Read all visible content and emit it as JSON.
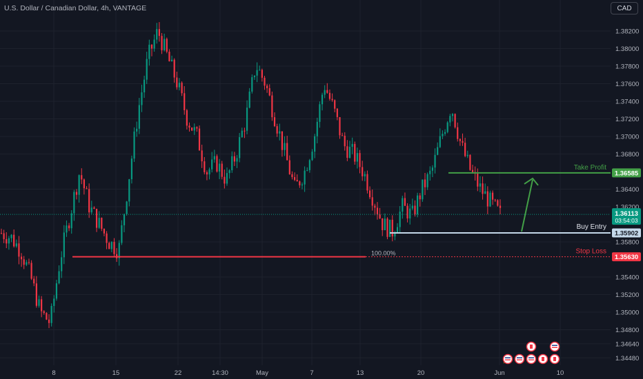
{
  "symbol": {
    "title": "U.S. Dollar / Canadian Dollar, 4h, VANTAGE"
  },
  "currency_button": "CAD",
  "price_axis": {
    "ticks": [
      "1.38200",
      "1.38000",
      "1.37800",
      "1.37600",
      "1.37400",
      "1.37200",
      "1.37000",
      "1.36800",
      "1.36400",
      "1.36200",
      "1.35800",
      "1.35400",
      "1.35200",
      "1.35000",
      "1.34800",
      "1.34640",
      "1.34480"
    ]
  },
  "time_axis": {
    "ticks": [
      "8",
      "15",
      "22",
      "14:30",
      "May",
      "7",
      "13",
      "20",
      "Jun",
      "10"
    ]
  },
  "levels": {
    "take_profit": {
      "label": "Take Profit",
      "price": "1.36585",
      "color": "#43a047"
    },
    "buy_entry": {
      "label": "Buy Entry",
      "price": "1.35902",
      "color": "#c5d9ea"
    },
    "stop_loss": {
      "label": "Stop Loss",
      "price": "1.35630",
      "color": "#f23645"
    },
    "fib_label": "100.00%"
  },
  "current_price": {
    "price": "1.36113",
    "countdown": "03:54:03",
    "color": "#089981"
  },
  "colors": {
    "up": "#089981",
    "down": "#f23645",
    "background": "#131722",
    "grid": "#1e222d",
    "axis_text": "#b2b5be"
  },
  "chart_data": {
    "type": "candlestick",
    "timeframe": "4h",
    "ylim": [
      1.344,
      1.384
    ],
    "levels": {
      "take_profit": 1.36585,
      "buy_entry": 1.35902,
      "stop_loss": 1.3563,
      "current": 1.36113
    },
    "close_path_approx": [
      [
        1.359,
        1.3585
      ],
      [
        1.3585,
        1.357
      ],
      [
        1.357,
        1.354
      ],
      [
        1.354,
        1.35
      ],
      [
        1.35,
        1.3488
      ],
      [
        1.3488,
        1.356
      ],
      [
        1.356,
        1.361
      ],
      [
        1.361,
        1.366
      ],
      [
        1.366,
        1.362
      ],
      [
        1.362,
        1.36
      ],
      [
        1.36,
        1.358
      ],
      [
        1.358,
        1.357
      ],
      [
        1.357,
        1.365
      ],
      [
        1.365,
        1.373
      ],
      [
        1.373,
        1.379
      ],
      [
        1.379,
        1.382
      ],
      [
        1.382,
        1.379
      ],
      [
        1.379,
        1.376
      ],
      [
        1.376,
        1.372
      ],
      [
        1.372,
        1.37
      ],
      [
        1.37,
        1.366
      ],
      [
        1.366,
        1.367
      ],
      [
        1.367,
        1.365
      ],
      [
        1.365,
        1.368
      ],
      [
        1.368,
        1.372
      ],
      [
        1.372,
        1.3782
      ],
      [
        1.3782,
        1.376
      ],
      [
        1.376,
        1.372
      ],
      [
        1.372,
        1.368
      ],
      [
        1.368,
        1.364
      ],
      [
        1.364,
        1.366
      ],
      [
        1.366,
        1.37
      ],
      [
        1.37,
        1.376
      ],
      [
        1.376,
        1.373
      ],
      [
        1.373,
        1.369
      ],
      [
        1.369,
        1.368
      ],
      [
        1.368,
        1.366
      ],
      [
        1.366,
        1.363
      ],
      [
        1.363,
        1.36
      ],
      [
        1.36,
        1.3592
      ],
      [
        1.3592,
        1.362
      ],
      [
        1.362,
        1.361
      ],
      [
        1.361,
        1.364
      ],
      [
        1.364,
        1.366
      ],
      [
        1.366,
        1.37
      ],
      [
        1.37,
        1.3735
      ],
      [
        1.3735,
        1.369
      ],
      [
        1.369,
        1.366
      ],
      [
        1.366,
        1.364
      ],
      [
        1.364,
        1.3625
      ],
      [
        1.3625,
        1.3611
      ]
    ]
  }
}
